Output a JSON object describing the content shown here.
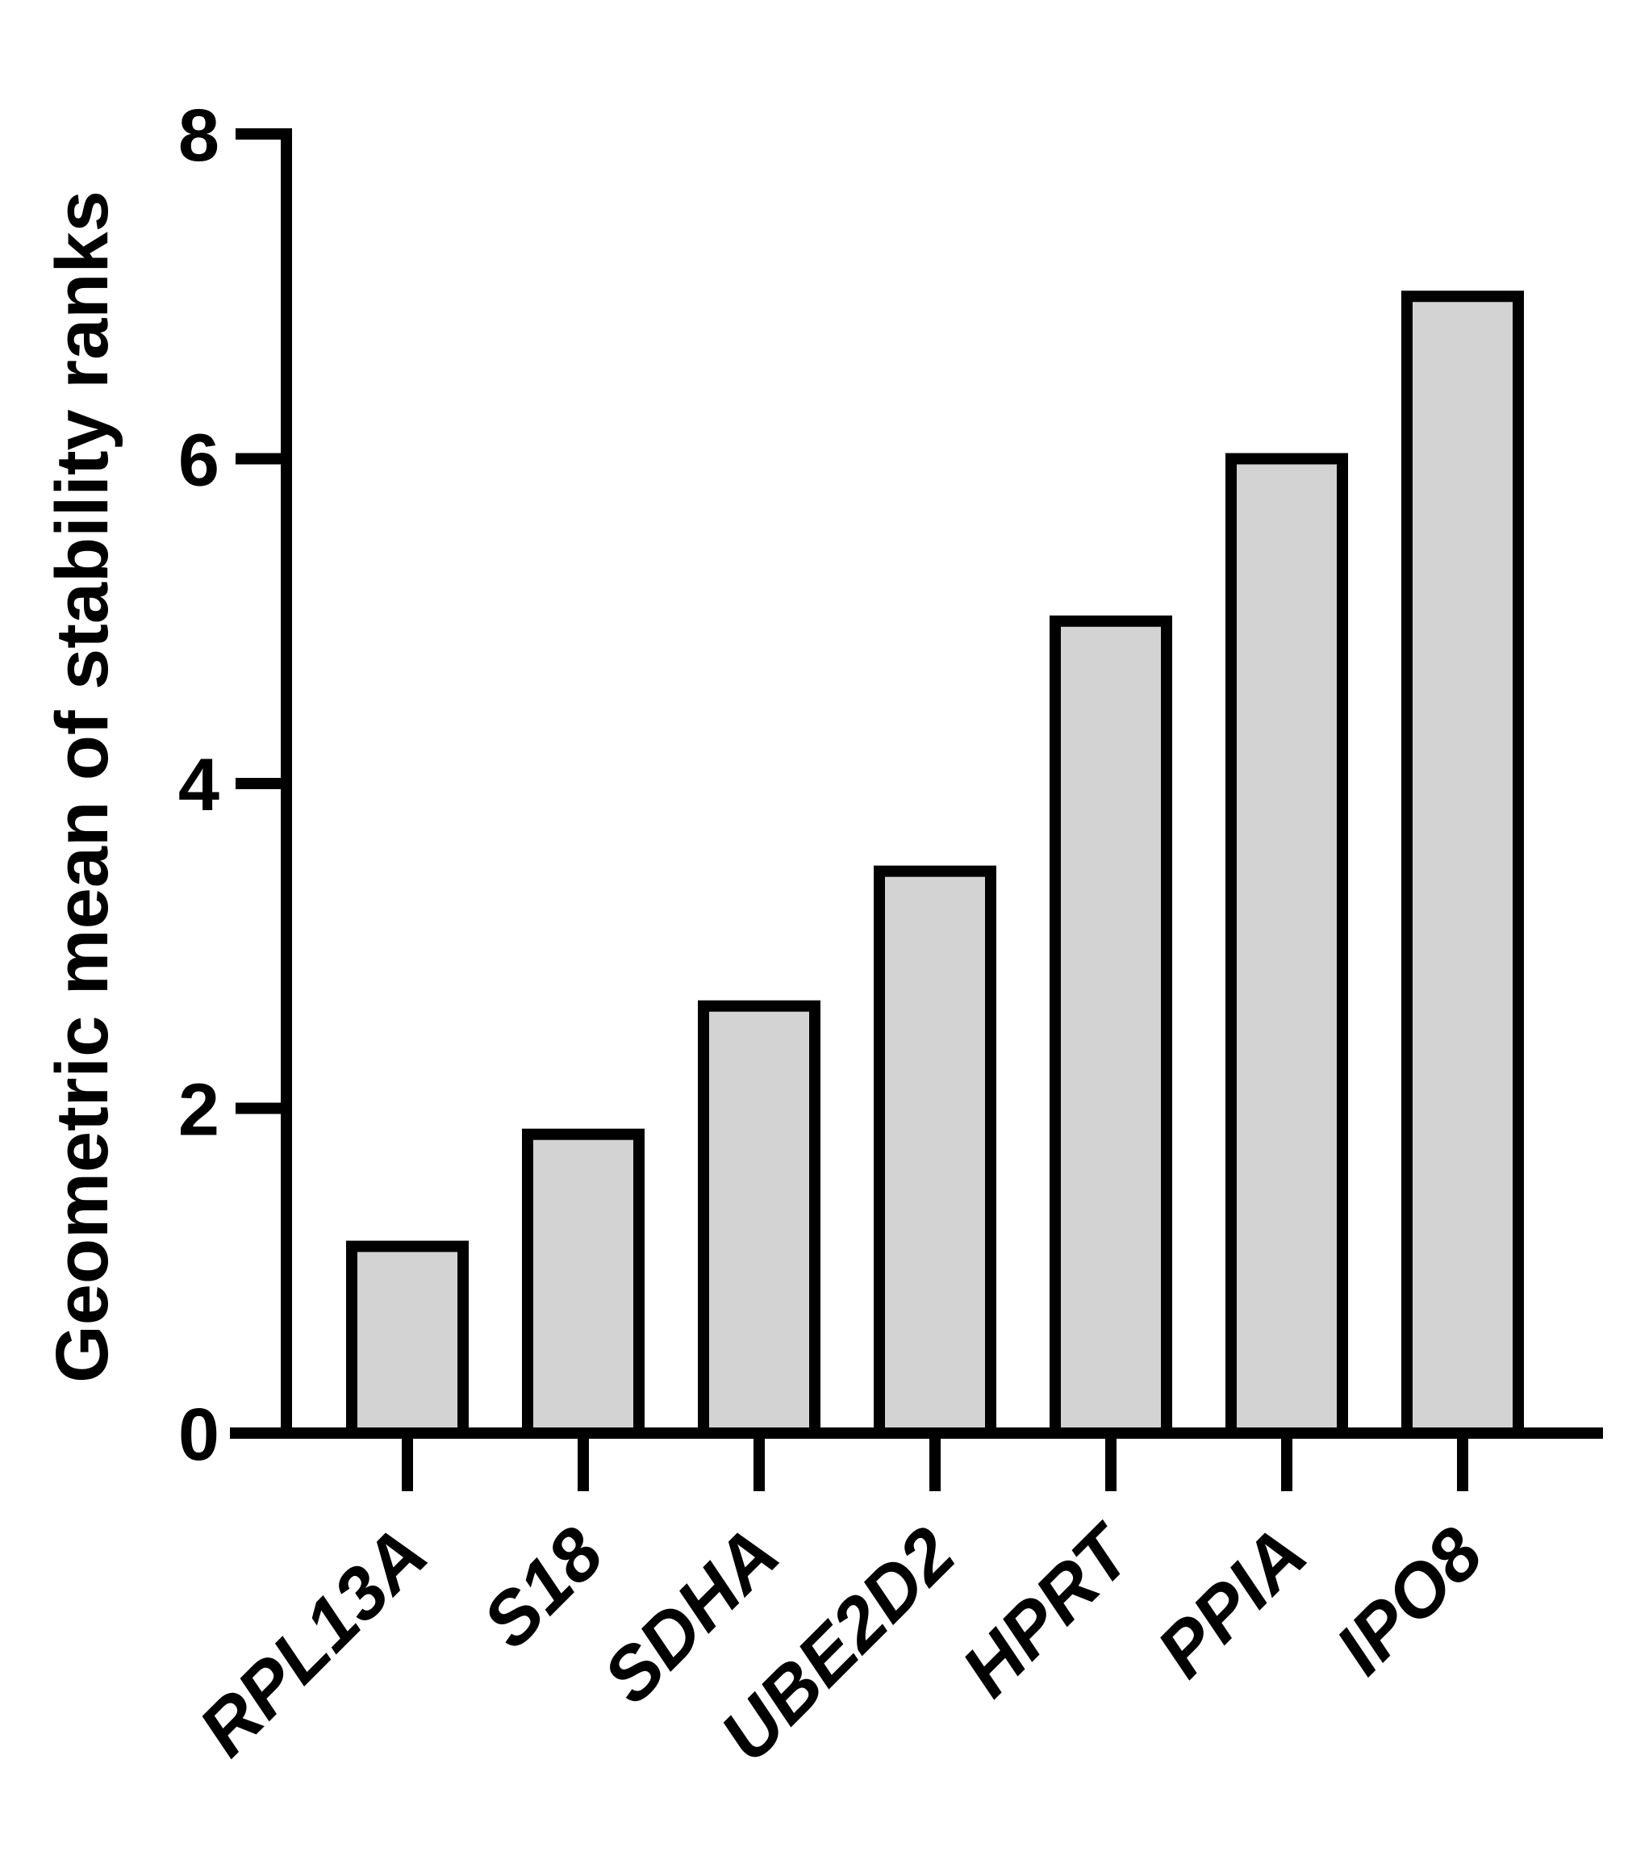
{
  "chart_data": {
    "type": "bar",
    "title": "",
    "xlabel": "",
    "ylabel": "Geometric mean of stability ranks",
    "categories": [
      "RPL13A",
      "S18",
      "SDHA",
      "UBE2D2",
      "HPRT",
      "PPIA",
      "IPO8"
    ],
    "values": [
      1.15,
      1.84,
      2.63,
      3.46,
      5.0,
      6.0,
      7.0
    ],
    "ylim": [
      0,
      8
    ],
    "yticks": [
      "0",
      "2",
      "4",
      "6",
      "8"
    ],
    "grid": false,
    "colors": {
      "bar_fill": "#d3d3d3",
      "bar_stroke": "#000000",
      "axis": "#000000"
    }
  }
}
